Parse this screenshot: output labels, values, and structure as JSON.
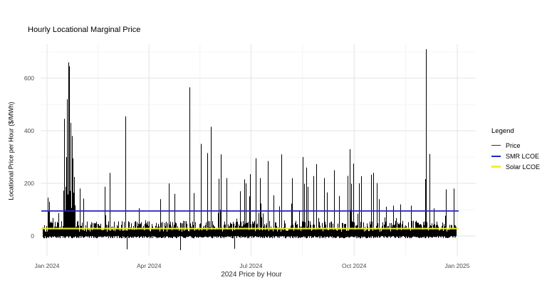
{
  "chart_data": {
    "type": "line",
    "title": "Hourly Locational Marginal Price",
    "xlabel": "2024 Price by Hour",
    "ylabel": "Locational Price per Hour ($/MWh)",
    "x_ticks": [
      "Jan 2024",
      "Apr 2024",
      "Jul 2024",
      "Oct 2024",
      "Jan 2025"
    ],
    "x_tick_dates": [
      "2024-01-01",
      "2024-04-01",
      "2024-07-01",
      "2024-10-01",
      "2025-01-01"
    ],
    "y_ticks": [
      0,
      200,
      400,
      600
    ],
    "y_minor_gridlines": [
      100,
      300,
      500,
      700
    ],
    "ylim": [
      -75,
      720
    ],
    "grid": true,
    "legend": {
      "title": "Legend",
      "position": "right",
      "items": [
        {
          "label": "Price",
          "color": "#333333"
        },
        {
          "label": "SMR LCOE",
          "color": "#2222CC"
        },
        {
          "label": "Solar LCOE",
          "color": "#F0F030"
        }
      ]
    },
    "series": [
      {
        "name": "Price",
        "style": "hourly_spiky_line",
        "color": "#000000",
        "baseline_value_range": [
          0,
          58
        ],
        "typical_minor_spike_range": [
          55,
          255
        ],
        "monthly_spike_activity": [
          0.06,
          0.04,
          0.04,
          0.06,
          0.08,
          0.11,
          0.11,
          0.11,
          0.11,
          0.09,
          0.05,
          0.045
        ],
        "clusters": [
          {
            "start": "2024-01-15",
            "end": "2024-01-26",
            "base_value_range": [
              70,
              230
            ]
          }
        ],
        "major_spikes": [
          {
            "date": "2024-01-02",
            "value": 92
          },
          {
            "date": "2024-01-03",
            "value": 130
          },
          {
            "date": "2024-01-16",
            "value": 445
          },
          {
            "date": "2024-01-18",
            "value": 300
          },
          {
            "date": "2024-01-19",
            "value": 520
          },
          {
            "date": "2024-01-20",
            "value": 660
          },
          {
            "date": "2024-01-21",
            "value": 645
          },
          {
            "date": "2024-01-22",
            "value": 430
          },
          {
            "date": "2024-01-23",
            "value": 380
          },
          {
            "date": "2024-01-24",
            "value": 295
          },
          {
            "date": "2024-01-25",
            "value": 205
          },
          {
            "date": "2024-01-30",
            "value": 180
          },
          {
            "date": "2024-02-26",
            "value": 240
          },
          {
            "date": "2024-03-11",
            "value": 455
          },
          {
            "date": "2024-03-23",
            "value": 105
          },
          {
            "date": "2024-04-11",
            "value": 140
          },
          {
            "date": "2024-04-24",
            "value": 160
          },
          {
            "date": "2024-05-07",
            "value": 565
          },
          {
            "date": "2024-05-17",
            "value": 350
          },
          {
            "date": "2024-05-23",
            "value": 315
          },
          {
            "date": "2024-05-26",
            "value": 415
          },
          {
            "date": "2024-06-04",
            "value": 310
          },
          {
            "date": "2024-06-09",
            "value": 220
          },
          {
            "date": "2024-06-21",
            "value": 170
          },
          {
            "date": "2024-06-25",
            "value": 215
          },
          {
            "date": "2024-06-30",
            "value": 235
          },
          {
            "date": "2024-07-05",
            "value": 295
          },
          {
            "date": "2024-07-09",
            "value": 220
          },
          {
            "date": "2024-07-16",
            "value": 285
          },
          {
            "date": "2024-07-28",
            "value": 310
          },
          {
            "date": "2024-08-16",
            "value": 300
          },
          {
            "date": "2024-08-19",
            "value": 260
          },
          {
            "date": "2024-08-28",
            "value": 273
          },
          {
            "date": "2024-09-04",
            "value": 220
          },
          {
            "date": "2024-09-13",
            "value": 250
          },
          {
            "date": "2024-09-27",
            "value": 330
          },
          {
            "date": "2024-09-30",
            "value": 275
          },
          {
            "date": "2024-10-05",
            "value": 200
          },
          {
            "date": "2024-10-07",
            "value": 227
          },
          {
            "date": "2024-10-18",
            "value": 240
          },
          {
            "date": "2024-10-23",
            "value": 140
          },
          {
            "date": "2024-11-05",
            "value": 115
          },
          {
            "date": "2024-11-11",
            "value": 120
          },
          {
            "date": "2024-11-21",
            "value": 115
          },
          {
            "date": "2024-12-04",
            "value": 710
          },
          {
            "date": "2024-12-07",
            "value": 312
          },
          {
            "date": "2024-12-11",
            "value": 105
          },
          {
            "date": "2024-12-22",
            "value": 177
          },
          {
            "date": "2024-12-29",
            "value": 180
          }
        ],
        "negative_dips": [
          {
            "date": "2024-03-12",
            "value": -51
          },
          {
            "date": "2024-04-29",
            "value": -54
          },
          {
            "date": "2024-06-16",
            "value": -49
          }
        ]
      },
      {
        "name": "SMR LCOE",
        "style": "hline",
        "color": "#2222CC",
        "value": 95
      },
      {
        "name": "Solar LCOE",
        "style": "hline",
        "color": "#F0F030",
        "value": 28
      }
    ]
  }
}
